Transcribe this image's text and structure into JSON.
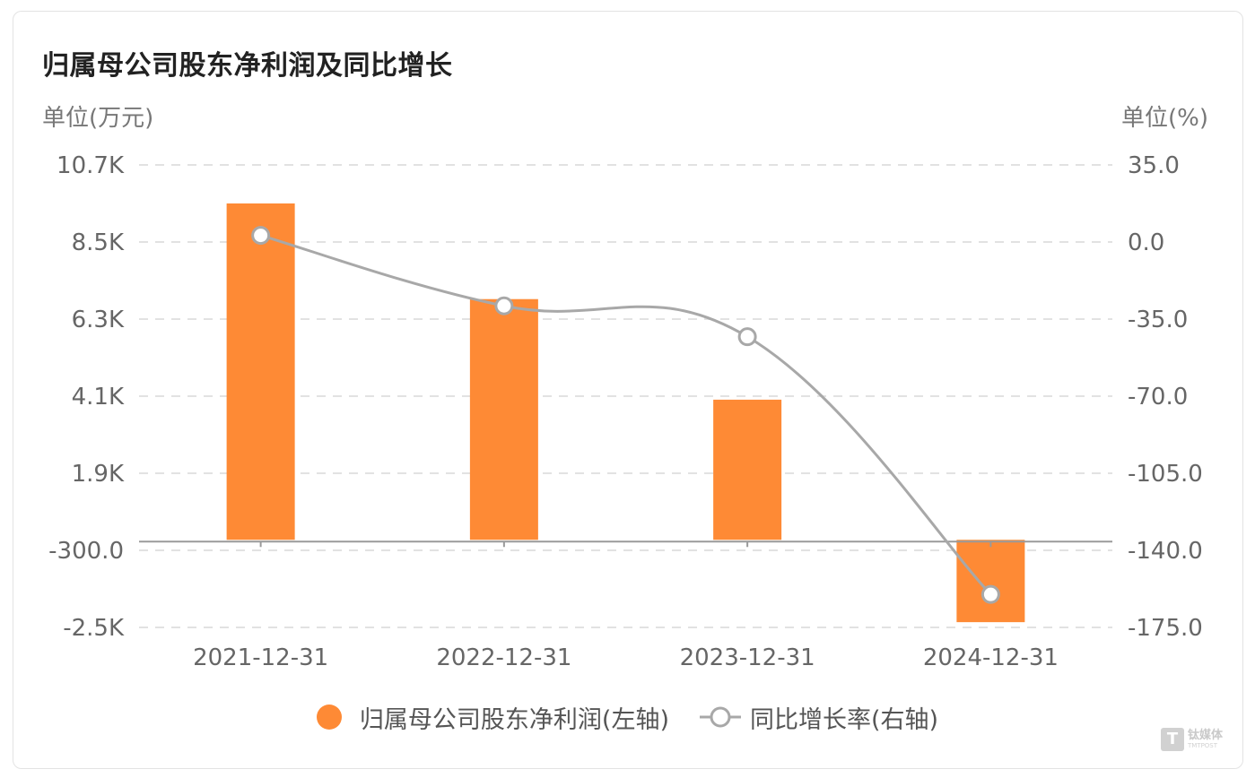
{
  "chart_data": {
    "type": "bar",
    "title": "归属母公司股东净利润及同比增长",
    "left_unit": "单位(万元)",
    "right_unit": "单位(%)",
    "categories": [
      "2021-12-31",
      "2022-12-31",
      "2023-12-31",
      "2024-12-31"
    ],
    "left_axis": {
      "ticks": [
        10700,
        8500,
        6300,
        4100,
        1900,
        -300,
        -2500
      ],
      "tick_labels": [
        "10.7K",
        "8.5K",
        "6.3K",
        "4.1K",
        "1.9K",
        "-300.0",
        "-2.5K"
      ],
      "range": [
        -2500,
        10700
      ]
    },
    "right_axis": {
      "ticks": [
        35,
        0,
        -35,
        -70,
        -105,
        -140,
        -175
      ],
      "tick_labels": [
        "35.0",
        "0.0",
        "-35.0",
        "-70.0",
        "-105.0",
        "-140.0",
        "-175.0"
      ],
      "range": [
        -175,
        35
      ]
    },
    "series": [
      {
        "name": "归属母公司股东净利润(左轴)",
        "type": "bar",
        "axis": "left",
        "color": "#fe8a35",
        "values": [
          9600,
          6870,
          4000,
          -2350
        ]
      },
      {
        "name": "同比增长率(右轴)",
        "type": "line",
        "axis": "right",
        "color": "#a8a8a8",
        "values": [
          3,
          -29,
          -43,
          -160
        ]
      }
    ],
    "grid": true,
    "legend_position": "bottom"
  },
  "watermark": {
    "cn": "钛媒体",
    "en": "TMTPOST",
    "mark": "T"
  }
}
